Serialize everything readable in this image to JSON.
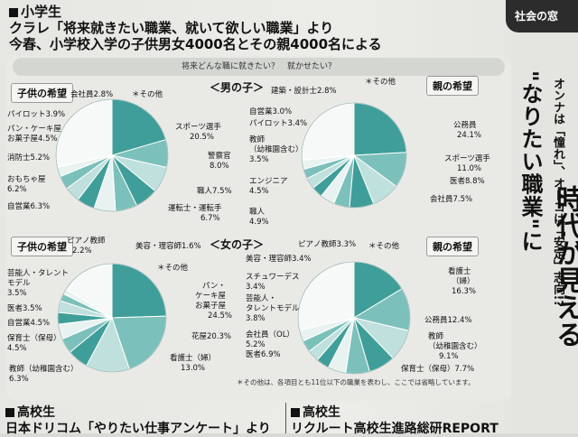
{
  "header": {
    "line1": "小学生",
    "line2": "クラレ「将来就きたい職業、就いて欲しい職業」より",
    "line3": "今春、小学校入学の子供男女4000名とその親4000名による"
  },
  "panel_question": "将来どんな職に就きたい？　就かせたい？",
  "sections": {
    "boys": "＜男の子＞",
    "girls": "＜女の子＞"
  },
  "tags": {
    "child": "子供の希望",
    "parent": "親の希望"
  },
  "footnote": "＊その他は、各項目とも11位以下の職業を表わし、ここでは省略しています。",
  "right": {
    "corner": "社会の窓",
    "small": "オンナは「憧れ」、オトコは「安定」志向!?",
    "main": "\"なりたい職業\"に",
    "title2": "時代が見える"
  },
  "bottom": {
    "left1": "高校生",
    "left2": "日本ドリコム「やりたい仕事アンケート」より",
    "right1": "高校生",
    "right2": "リクルート高校生進路総研REPORT"
  },
  "colors": {
    "dark": "#3f9e99",
    "mid": "#7cc0bb",
    "light": "#bfe0dc",
    "pale": "#e8f3f1",
    "white": "#f7f9f8"
  },
  "chart_data": [
    {
      "type": "pie",
      "title": "男の子 子供の希望",
      "slices": [
        {
          "label": "スポーツ選手",
          "value": 20.5
        },
        {
          "label": "警察官",
          "value": 8.0
        },
        {
          "label": "職人",
          "value": 7.5
        },
        {
          "label": "運転士・運転手",
          "value": 6.7
        },
        {
          "label": "自営業",
          "value": 6.3
        },
        {
          "label": "おもちゃ屋",
          "value": 6.2
        },
        {
          "label": "消防士",
          "value": 5.2
        },
        {
          "label": "パン・ケーキ屋お菓子屋",
          "value": 4.5
        },
        {
          "label": "パイロット",
          "value": 3.9
        },
        {
          "label": "会社員",
          "value": 2.8
        },
        {
          "label": "＊その他",
          "value": 28.4
        }
      ]
    },
    {
      "type": "pie",
      "title": "男の子 親の希望",
      "slices": [
        {
          "label": "公務員",
          "value": 24.1
        },
        {
          "label": "スポーツ選手",
          "value": 11.0
        },
        {
          "label": "医者",
          "value": 8.8
        },
        {
          "label": "会社員",
          "value": 7.5
        },
        {
          "label": "職人",
          "value": 4.9
        },
        {
          "label": "エンジニア",
          "value": 4.5
        },
        {
          "label": "教師（幼稚園含む）",
          "value": 3.5
        },
        {
          "label": "パイロット",
          "value": 3.4
        },
        {
          "label": "自営業",
          "value": 3.0
        },
        {
          "label": "建築・設計士",
          "value": 2.8
        },
        {
          "label": "＊その他",
          "value": 26.5
        }
      ]
    },
    {
      "type": "pie",
      "title": "女の子 子供の希望",
      "slices": [
        {
          "label": "パン・ケーキ屋お菓子屋",
          "value": 24.5
        },
        {
          "label": "花屋",
          "value": 20.3
        },
        {
          "label": "看護士（婦）",
          "value": 13.0
        },
        {
          "label": "教師（幼稚園含む）",
          "value": 6.3
        },
        {
          "label": "保育士（保母）",
          "value": 4.5
        },
        {
          "label": "自営業",
          "value": 4.5
        },
        {
          "label": "医者",
          "value": 3.5
        },
        {
          "label": "芸能人・タレントモデル",
          "value": 3.5
        },
        {
          "label": "ピアノ教師",
          "value": 2.2
        },
        {
          "label": "美容・理容師",
          "value": 1.6
        },
        {
          "label": "＊その他",
          "value": 16.1
        }
      ]
    },
    {
      "type": "pie",
      "title": "女の子 親の希望",
      "slices": [
        {
          "label": "看護士（婦）",
          "value": 16.3
        },
        {
          "label": "公務員",
          "value": 12.4
        },
        {
          "label": "教師（幼稚園含む）",
          "value": 9.1
        },
        {
          "label": "保育士（保母）",
          "value": 7.7
        },
        {
          "label": "医者",
          "value": 6.9
        },
        {
          "label": "会社員（OL）",
          "value": 5.2
        },
        {
          "label": "芸能人・タレントモデル",
          "value": 3.8
        },
        {
          "label": "スチュワーデス",
          "value": 3.4
        },
        {
          "label": "美容・理容師",
          "value": 3.4
        },
        {
          "label": "ピアノ教師",
          "value": 3.3
        },
        {
          "label": "＊その他",
          "value": 28.5
        }
      ]
    }
  ],
  "value_labels": {
    "p0": [
      "スポーツ選手",
      "20.5%",
      "警察官",
      "8.0%",
      "職人7.5%",
      "運転士・運転手",
      "6.7%",
      "自営業6.3%",
      "おもちゃ屋",
      "6.2%",
      "消防士5.2%",
      "パン・ケーキ屋",
      "お菓子屋4.5%",
      "パイロット3.9%",
      "会社員2.8%",
      "＊その他"
    ],
    "p1": [
      "公務員",
      "24.1%",
      "スポーツ選手",
      "11.0%",
      "医者8.8%",
      "会社員7.5%",
      "職人",
      "4.9%",
      "エンジニア",
      "4.5%",
      "教師",
      "（幼稚園含む）",
      "3.5%",
      "パイロット3.4%",
      "自営業3.0%",
      "建築・設計士2.8%",
      "＊その他"
    ],
    "p2": [
      "パン・",
      "ケーキ屋",
      "お菓子屋",
      "24.5%",
      "花屋20.3%",
      "看護士（婦）",
      "13.0%",
      "教師（幼稚園含む）",
      "6.3%",
      "保育士（保母）",
      "4.5%",
      "自営業4.5%",
      "医者3.5%",
      "芸能人・タレント",
      "モデル",
      "3.5%",
      "ピアノ教師",
      "2.2%",
      "美容・理容師1.6%",
      "＊その他"
    ],
    "p3": [
      "看護士",
      "（婦）",
      "16.3%",
      "公務員12.4%",
      "教師",
      "（幼稚園含む）",
      "9.1%",
      "保育士（保母）7.7%",
      "医者6.9%",
      "会社員（OL）",
      "5.2%",
      "芸能人・",
      "タレントモデル",
      "3.8%",
      "スチュワーデス",
      "3.4%",
      "美容・理容師3.4%",
      "ピアノ教師3.3%",
      "＊その他"
    ]
  }
}
